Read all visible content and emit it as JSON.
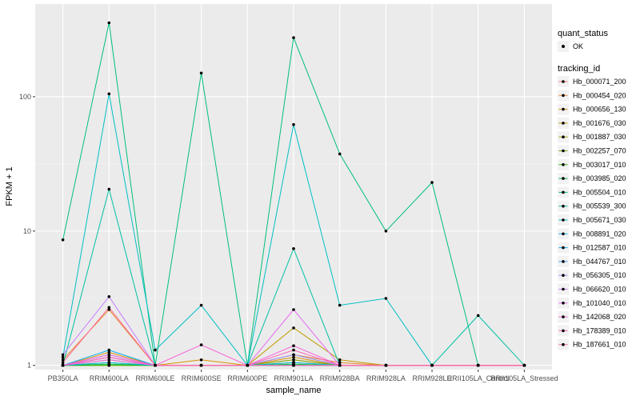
{
  "chart_data": {
    "type": "line",
    "xlabel": "sample_name",
    "ylabel": "FPKM + 1",
    "y_scale": "log10",
    "ylim": [
      0.93,
      490
    ],
    "y_ticks": [
      1,
      10,
      100
    ],
    "y_tick_labels": [
      "1",
      "10",
      "100"
    ],
    "categories": [
      "PB350LA",
      "RRIM600LA",
      "RRIM600LE",
      "RRIM600SE",
      "RRIM600PE",
      "RRIM901LA",
      "RRIM928BA",
      "RRIM928LA",
      "RRIM928LE",
      "RRII105LA_Control",
      "RRII105LA_Stressed"
    ],
    "legend_points": {
      "title": "quant_status",
      "label": "OK"
    },
    "legend_lines": {
      "title": "tracking_id"
    },
    "series": [
      {
        "name": "Hb_000071_200",
        "color": "#F8766D",
        "values": [
          1.0,
          1.15,
          1.0,
          1.0,
          1.0,
          1.1,
          1.0,
          1.0,
          1.0,
          1.0,
          1.0
        ]
      },
      {
        "name": "Hb_000454_020",
        "color": "#EA8331",
        "values": [
          1.1,
          2.6,
          1.0,
          1.0,
          1.0,
          1.2,
          1.05,
          1.0,
          1.0,
          1.0,
          1.0
        ]
      },
      {
        "name": "Hb_000656_130",
        "color": "#D89000",
        "values": [
          1.0,
          1.25,
          1.0,
          1.1,
          1.0,
          1.15,
          1.0,
          1.0,
          1.0,
          1.0,
          1.0
        ]
      },
      {
        "name": "Hb_001676_030",
        "color": "#C09B00",
        "values": [
          1.0,
          1.1,
          1.0,
          1.0,
          1.0,
          1.9,
          1.1,
          1.0,
          1.0,
          1.0,
          1.0
        ]
      },
      {
        "name": "Hb_001887_030",
        "color": "#A3A500",
        "values": [
          1.0,
          1.0,
          1.0,
          1.0,
          1.0,
          1.05,
          1.0,
          1.0,
          1.0,
          1.0,
          1.0
        ]
      },
      {
        "name": "Hb_002257_070",
        "color": "#7CAE00",
        "values": [
          1.0,
          1.05,
          1.0,
          1.0,
          1.0,
          1.1,
          1.0,
          1.0,
          1.0,
          1.0,
          1.0
        ]
      },
      {
        "name": "Hb_003017_010",
        "color": "#39B600",
        "values": [
          1.0,
          1.0,
          1.0,
          1.0,
          1.0,
          1.0,
          1.0,
          1.0,
          1.0,
          1.0,
          1.0
        ]
      },
      {
        "name": "Hb_003985_020",
        "color": "#00BB4E",
        "values": [
          1.0,
          1.02,
          1.0,
          1.0,
          1.0,
          1.02,
          1.0,
          1.0,
          1.0,
          1.0,
          1.0
        ]
      },
      {
        "name": "Hb_005504_010",
        "color": "#00BF7D",
        "values": [
          8.6,
          355,
          1.0,
          150,
          1.0,
          275,
          37.5,
          10.0,
          23,
          1.0,
          1.0
        ]
      },
      {
        "name": "Hb_005539_300",
        "color": "#00C1A3",
        "values": [
          1.0,
          20.5,
          1.0,
          1.0,
          1.0,
          7.4,
          1.0,
          1.0,
          1.0,
          2.35,
          1.0
        ]
      },
      {
        "name": "Hb_005671_030",
        "color": "#00BFC4",
        "values": [
          1.15,
          105,
          1.3,
          2.8,
          1.0,
          62,
          2.8,
          3.15,
          1.0,
          1.0,
          1.0
        ]
      },
      {
        "name": "Hb_008891_020",
        "color": "#00BAE0",
        "values": [
          1.0,
          1.05,
          1.0,
          1.0,
          1.0,
          1.05,
          1.0,
          1.0,
          1.0,
          1.0,
          1.0
        ]
      },
      {
        "name": "Hb_012587_010",
        "color": "#00B0F6",
        "values": [
          1.0,
          1.3,
          1.0,
          1.0,
          1.0,
          1.0,
          1.0,
          1.0,
          1.0,
          1.0,
          1.0
        ]
      },
      {
        "name": "Hb_044767_010",
        "color": "#35A2FF",
        "values": [
          1.0,
          1.2,
          1.0,
          1.0,
          1.0,
          1.0,
          1.0,
          1.0,
          1.0,
          1.0,
          1.0
        ]
      },
      {
        "name": "Hb_056305_010",
        "color": "#9590FF",
        "values": [
          1.0,
          1.15,
          1.0,
          1.0,
          1.0,
          1.2,
          1.0,
          1.0,
          1.0,
          1.0,
          1.0
        ]
      },
      {
        "name": "Hb_066620_010",
        "color": "#C77CFF",
        "values": [
          1.2,
          3.25,
          1.0,
          1.0,
          1.0,
          1.0,
          1.0,
          1.0,
          1.0,
          1.0,
          1.0
        ]
      },
      {
        "name": "Hb_101040_010",
        "color": "#E76BF3",
        "values": [
          1.0,
          1.1,
          1.0,
          1.0,
          1.0,
          2.6,
          1.0,
          1.0,
          1.0,
          1.0,
          1.0
        ]
      },
      {
        "name": "Hb_142068_020",
        "color": "#FA62DB",
        "values": [
          1.0,
          1.2,
          1.0,
          1.42,
          1.0,
          1.4,
          1.0,
          1.0,
          1.0,
          1.0,
          1.0
        ]
      },
      {
        "name": "Hb_178389_010",
        "color": "#FF62BC",
        "values": [
          1.0,
          1.15,
          1.0,
          1.0,
          1.0,
          1.3,
          1.0,
          1.0,
          1.0,
          1.0,
          1.0
        ]
      },
      {
        "name": "Hb_187661_010",
        "color": "#FF6C91",
        "values": [
          1.05,
          2.7,
          1.0,
          1.0,
          1.0,
          1.0,
          1.0,
          1.0,
          1.0,
          1.0,
          1.0
        ]
      }
    ]
  }
}
